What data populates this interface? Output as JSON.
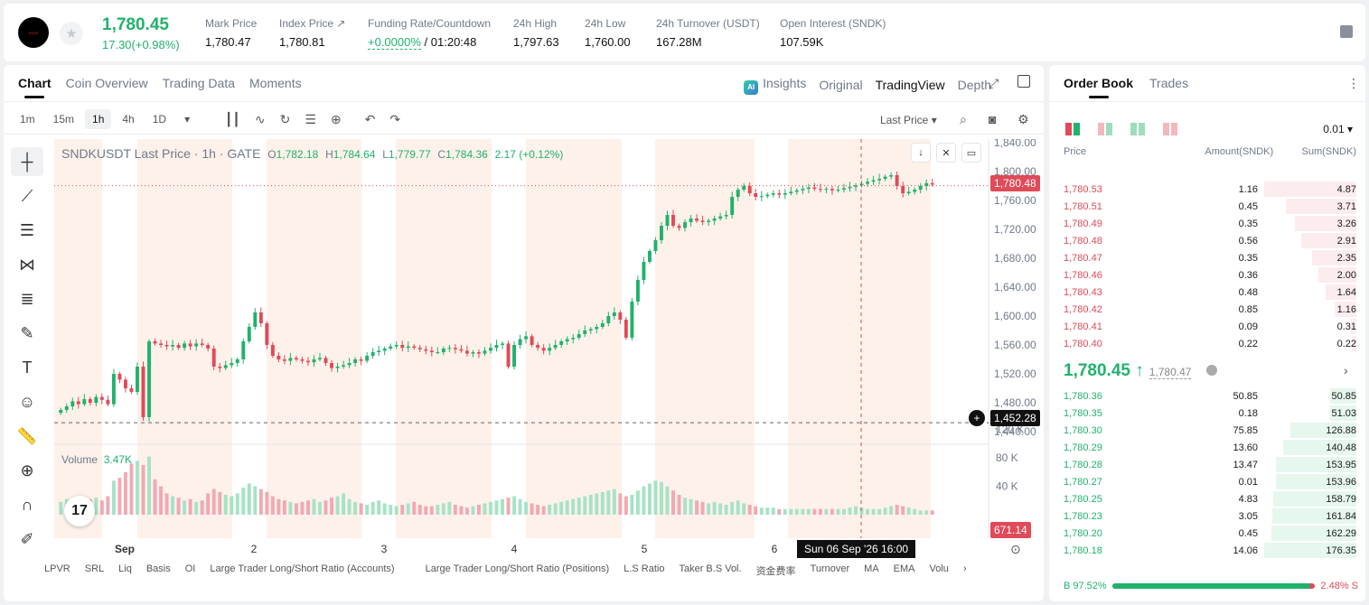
{
  "ticker": {
    "logo_text": "SNDK",
    "last_price": "1,780.45",
    "change": "17.30(+0.98%)",
    "stats": [
      {
        "label": "Mark Price",
        "value": "1,780.47"
      },
      {
        "label": "Index Price ↗",
        "value": "1,780.81"
      },
      {
        "label": "Funding Rate/Countdown",
        "value": "+0.0000%",
        "value2": "/ 01:20:48"
      },
      {
        "label": "24h High",
        "value": "1,797.63"
      },
      {
        "label": "24h Low",
        "value": "1,760.00"
      },
      {
        "label": "24h Turnover (USDT)",
        "value": "167.28M"
      },
      {
        "label": "Open Interest (SNDK)",
        "value": "107.59K"
      }
    ]
  },
  "chart_tabs": [
    "Chart",
    "Coin Overview",
    "Trading Data",
    "Moments"
  ],
  "view_tabs": {
    "insights": "Insights",
    "ai": "AI",
    "original": "Original",
    "tradingview": "TradingView",
    "depth": "Depth"
  },
  "timeframes": [
    "1m",
    "15m",
    "1h",
    "4h",
    "1D"
  ],
  "price_source": "Last Price",
  "ohlc": {
    "title": "SNDKUSDT Last Price · 1h · GATE",
    "o": "1,782.18",
    "h": "1,784.64",
    "l": "1,779.77",
    "c": "1,784.36",
    "chg": "2.17 (+0.12%)"
  },
  "volume": {
    "label": "Volume",
    "value": "3.47K"
  },
  "tv_logo": "17",
  "tags": {
    "last": "1,780.48",
    "cross": "1,452.28",
    "vol": "671.14"
  },
  "crosshair_time": "Sun 06 Sep '26   16:00",
  "indicators": [
    "LPVR",
    "SRL",
    "Liq",
    "Basis",
    "OI",
    "Large Trader Long/Short Ratio (Accounts)",
    "Large Trader Long/Short Ratio (Positions)",
    "L.S Ratio",
    "Taker B.S Vol.",
    "资金费率",
    "Turnover",
    "MA",
    "EMA",
    "Volu"
  ],
  "chart_data": {
    "type": "candlestick",
    "title": "SNDKUSDT Last Price · 1h · GATE",
    "y_ticks": [
      "1,840.00",
      "1,800.00",
      "1,760.00",
      "1,720.00",
      "1,680.00",
      "1,640.00",
      "1,600.00",
      "1,560.00",
      "1,520.00",
      "1,480.00",
      "1,440.00"
    ],
    "vol_ticks": [
      "120 K",
      "80 K",
      "40 K"
    ],
    "x_ticks": [
      "Sep",
      "2",
      "3",
      "4",
      "5",
      "6"
    ],
    "ylim": [
      1420,
      1845
    ],
    "close": [
      1470,
      1475,
      1482,
      1478,
      1485,
      1480,
      1488,
      1484,
      1478,
      1520,
      1512,
      1500,
      1495,
      1530,
      1460,
      1565,
      1562,
      1560,
      1558,
      1560,
      1556,
      1562,
      1558,
      1562,
      1560,
      1555,
      1530,
      1528,
      1532,
      1535,
      1540,
      1565,
      1585,
      1605,
      1590,
      1560,
      1545,
      1540,
      1538,
      1542,
      1540,
      1538,
      1536,
      1540,
      1542,
      1535,
      1528,
      1530,
      1532,
      1535,
      1540,
      1538,
      1545,
      1550,
      1552,
      1555,
      1558,
      1560,
      1556,
      1558,
      1556,
      1554,
      1552,
      1550,
      1550,
      1555,
      1556,
      1554,
      1552,
      1548,
      1550,
      1548,
      1552,
      1556,
      1560,
      1562,
      1530,
      1560,
      1568,
      1572,
      1560,
      1556,
      1552,
      1556,
      1560,
      1565,
      1568,
      1570,
      1575,
      1580,
      1582,
      1585,
      1590,
      1600,
      1605,
      1595,
      1570,
      1620,
      1650,
      1675,
      1690,
      1705,
      1725,
      1740,
      1725,
      1722,
      1730,
      1735,
      1732,
      1730,
      1732,
      1735,
      1738,
      1740,
      1765,
      1775,
      1780,
      1770,
      1765,
      1766,
      1768,
      1770,
      1768,
      1770,
      1772,
      1774,
      1776,
      1778,
      1776,
      1775,
      1776,
      1774,
      1775,
      1777,
      1779,
      1781,
      1783,
      1786,
      1788,
      1790,
      1793,
      1795,
      1780,
      1770,
      1772,
      1775,
      1780,
      1784,
      1782
    ],
    "volume": [
      18,
      22,
      20,
      19,
      25,
      22,
      24,
      20,
      26,
      48,
      52,
      60,
      72,
      76,
      70,
      82,
      50,
      40,
      30,
      26,
      24,
      20,
      22,
      18,
      20,
      30,
      36,
      32,
      28,
      26,
      30,
      38,
      44,
      40,
      36,
      32,
      26,
      22,
      20,
      18,
      16,
      18,
      20,
      22,
      18,
      20,
      24,
      26,
      30,
      22,
      18,
      16,
      14,
      18,
      20,
      16,
      14,
      12,
      14,
      16,
      18,
      14,
      12,
      12,
      14,
      16,
      18,
      14,
      12,
      10,
      12,
      14,
      16,
      18,
      20,
      22,
      24,
      26,
      22,
      18,
      16,
      14,
      12,
      14,
      16,
      18,
      20,
      22,
      24,
      26,
      28,
      30,
      32,
      34,
      36,
      30,
      26,
      28,
      34,
      40,
      44,
      48,
      46,
      40,
      34,
      28,
      24,
      22,
      20,
      18,
      16,
      18,
      16,
      14,
      18,
      20,
      16,
      14,
      12,
      10,
      10,
      10,
      8,
      8,
      8,
      8,
      8,
      8,
      8,
      8,
      8,
      8,
      8,
      8,
      10,
      12,
      10,
      8,
      8,
      8,
      10,
      12,
      14,
      12,
      10,
      8,
      6,
      6,
      6
    ]
  },
  "orderbook": {
    "tabs": [
      "Order Book",
      "Trades"
    ],
    "precision": "0.01",
    "cols": [
      "Price",
      "Amount(SNDK)",
      "Sum(SNDK)"
    ],
    "asks": [
      [
        "1,780.53",
        "1.16",
        "4.87"
      ],
      [
        "1,780.51",
        "0.45",
        "3.71"
      ],
      [
        "1,780.49",
        "0.35",
        "3.26"
      ],
      [
        "1,780.48",
        "0.56",
        "2.91"
      ],
      [
        "1,780.47",
        "0.35",
        "2.35"
      ],
      [
        "1,780.46",
        "0.36",
        "2.00"
      ],
      [
        "1,780.43",
        "0.48",
        "1.64"
      ],
      [
        "1,780.42",
        "0.85",
        "1.16"
      ],
      [
        "1,780.41",
        "0.09",
        "0.31"
      ],
      [
        "1,780.40",
        "0.22",
        "0.22"
      ]
    ],
    "mid": "1,780.45 ↑",
    "mark": "1,780.47",
    "bids": [
      [
        "1,780.36",
        "50.85",
        "50.85"
      ],
      [
        "1,780.35",
        "0.18",
        "51.03"
      ],
      [
        "1,780.30",
        "75.85",
        "126.88"
      ],
      [
        "1,780.29",
        "13.60",
        "140.48"
      ],
      [
        "1,780.28",
        "13.47",
        "153.95"
      ],
      [
        "1,780.27",
        "0.01",
        "153.96"
      ],
      [
        "1,780.25",
        "4.83",
        "158.79"
      ],
      [
        "1,780.23",
        "3.05",
        "161.84"
      ],
      [
        "1,780.20",
        "0.45",
        "162.29"
      ],
      [
        "1,780.18",
        "14.06",
        "176.35"
      ]
    ],
    "buy_ratio": "B 97.52%",
    "sell_ratio": "2.48% S",
    "buy_fraction": 0.9752,
    "ask_max": 4.87,
    "bid_max": 176.35
  },
  "colors": {
    "up": "#20b26c",
    "down": "#e04a59"
  }
}
